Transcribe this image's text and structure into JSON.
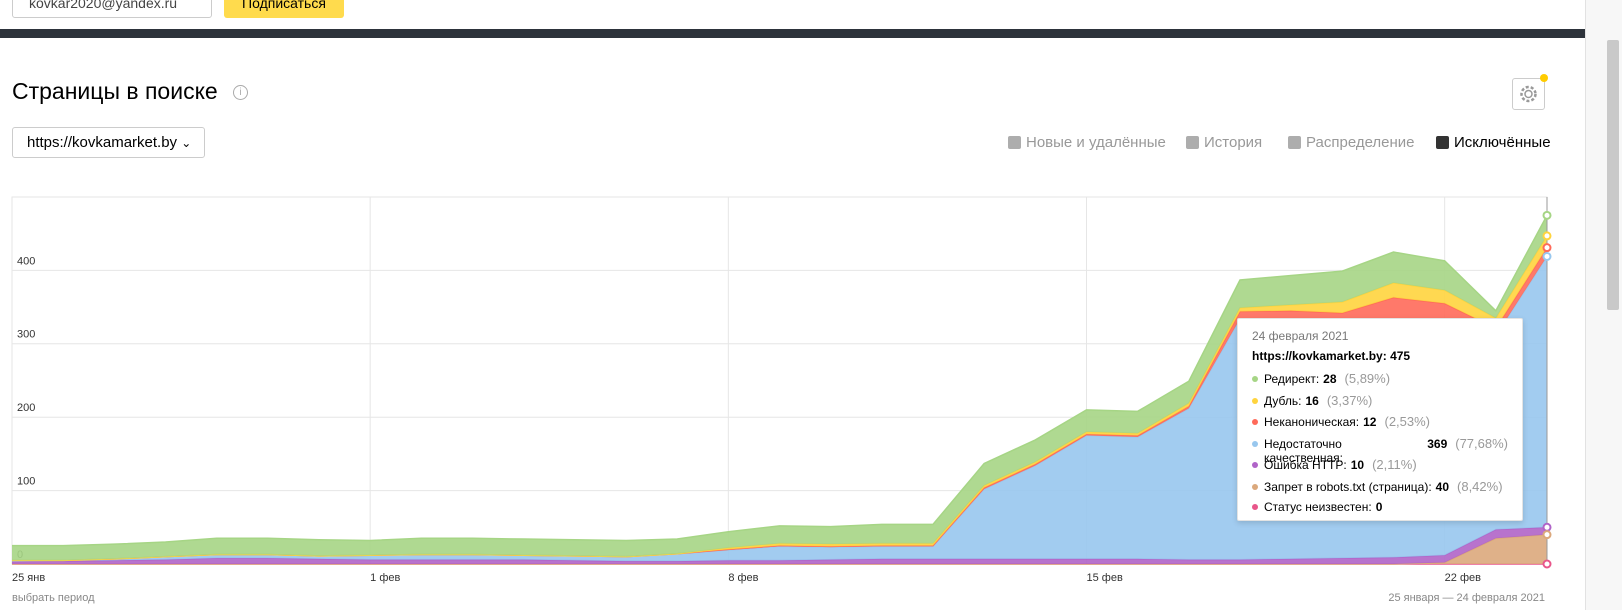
{
  "header": {
    "email": "kovkar2020@yandex.ru",
    "subscribe": "Подписаться"
  },
  "title": "Страницы в поиске",
  "site": "https://kovkamarket.by",
  "tabs": [
    "Новые и удалённые",
    "История",
    "Распределение",
    "Исключённые"
  ],
  "active_tab": 3,
  "footer": {
    "period_link": "выбрать период",
    "period": "25 января — 24 февраля 2021"
  },
  "tooltip": {
    "date": "24 февраля 2021",
    "total": 475,
    "shares": [
      "(5,89%)",
      "(3,37%)",
      "(2,53%)",
      "(77,68%)",
      "(2,11%)",
      "(8,42%)"
    ]
  },
  "chart_data": {
    "type": "stacked-area",
    "categories": [
      "25 янв",
      null,
      null,
      null,
      null,
      null,
      null,
      "1 фев",
      null,
      null,
      null,
      null,
      null,
      null,
      "8 фев",
      null,
      null,
      null,
      null,
      null,
      null,
      "15 фев",
      null,
      null,
      null,
      null,
      null,
      null,
      "22 фев",
      null,
      null
    ],
    "ylim": [
      0,
      500
    ],
    "yticks": [
      0,
      100,
      200,
      300,
      400
    ],
    "grid": true,
    "series": [
      {
        "name": "Редирект",
        "color": "#a6d585",
        "values": [
          20,
          20,
          20,
          20,
          22,
          22,
          22,
          20,
          22,
          22,
          22,
          22,
          22,
          20,
          22,
          24,
          24,
          26,
          26,
          30,
          30,
          30,
          30,
          30,
          38,
          40,
          42,
          42,
          40,
          10,
          28
        ]
      },
      {
        "name": "Дубль",
        "color": "#ffd43e",
        "values": [
          0,
          0,
          0,
          0,
          0,
          0,
          0,
          0,
          0,
          0,
          0,
          0,
          0,
          0,
          2,
          3,
          3,
          3,
          3,
          3,
          3,
          3,
          3,
          4,
          5,
          8,
          15,
          20,
          18,
          14,
          16
        ]
      },
      {
        "name": "Неканоническая",
        "color": "#ff6a5a",
        "values": [
          0,
          0,
          0,
          0,
          0,
          0,
          0,
          0,
          0,
          0,
          0,
          0,
          0,
          0,
          1,
          1,
          1,
          1,
          1,
          2,
          2,
          2,
          2,
          3,
          10,
          15,
          30,
          40,
          30,
          10,
          12
        ]
      },
      {
        "name": "Недостаточно качественная",
        "color": "#98c7ee",
        "values": [
          2,
          1,
          2,
          4,
          5,
          5,
          4,
          6,
          7,
          7,
          6,
          6,
          6,
          10,
          14,
          19,
          17,
          17,
          17,
          95,
          127,
          168,
          166,
          206,
          328,
          323,
          304,
          314,
          313,
          264,
          369
        ]
      },
      {
        "name": "Ошибка HTTP",
        "color": "#b064c8",
        "values": [
          3,
          4,
          5,
          6,
          8,
          8,
          7,
          6,
          6,
          6,
          6,
          5,
          4,
          4,
          5,
          5,
          6,
          7,
          7,
          7,
          7,
          7,
          7,
          6,
          6,
          7,
          8,
          9,
          10,
          12,
          10
        ]
      },
      {
        "name": "Запрет в robots.txt (страница)",
        "color": "#dba87c",
        "values": [
          0,
          0,
          0,
          0,
          0,
          0,
          0,
          0,
          0,
          0,
          0,
          0,
          0,
          0,
          0,
          0,
          0,
          0,
          0,
          0,
          0,
          0,
          0,
          0,
          0,
          0,
          0,
          0,
          2,
          35,
          40
        ]
      },
      {
        "name": "Статус неизвестен",
        "color": "#e8568a",
        "values": [
          0,
          0,
          0,
          0,
          0,
          0,
          0,
          0,
          0,
          0,
          0,
          0,
          0,
          0,
          0,
          0,
          0,
          0,
          0,
          0,
          0,
          0,
          0,
          0,
          0,
          0,
          0,
          0,
          0,
          0,
          0
        ]
      }
    ]
  }
}
